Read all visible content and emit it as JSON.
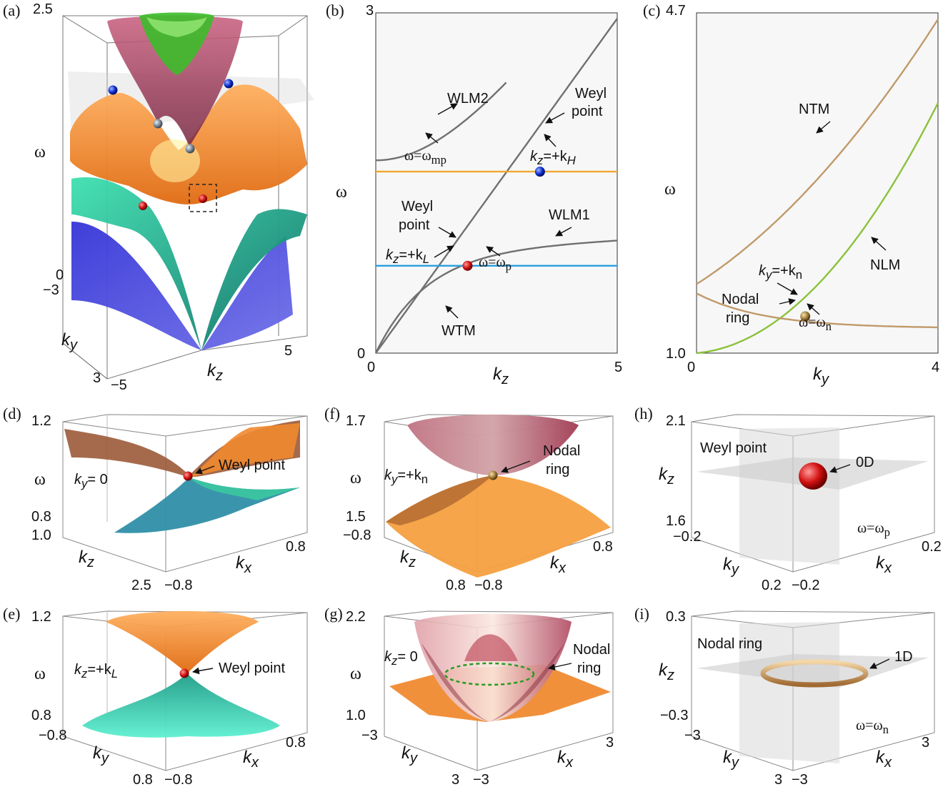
{
  "panels": {
    "a": {
      "label": "(a)",
      "omega_label": "ω",
      "ky_label": "k",
      "ky_sub": "y",
      "kz_label": "k",
      "kz_sub": "z",
      "omega_max": "2.5",
      "omega_min": "0",
      "ky_min": "−3",
      "ky_max": "3",
      "kz_min": "−5",
      "kz_max": "5"
    },
    "b": {
      "label": "(b)",
      "y_max": "3",
      "y_min": "0",
      "x_min": "0",
      "x_max": "5",
      "ylabel": "ω",
      "xlabel_main": "k",
      "xlabel_sub": "z",
      "ann": {
        "wlm2": "WLM2",
        "weyl_point_1a": "Weyl",
        "weyl_point_1b": "point",
        "omega_mp": "ω=ω",
        "omega_mp_sub": "mp",
        "kz_kh": "k",
        "kz_kh_mid": "z",
        "kz_kh_eq": "=+k",
        "kz_kh_sub": "H",
        "weyl_point_2a": "Weyl",
        "weyl_point_2b": "point",
        "wlm1": "WLM1",
        "kz_kl": "k",
        "kz_kl_mid": "z",
        "kz_kl_eq": "=+k",
        "kz_kl_sub": "L",
        "omega_p": "ω=ω",
        "omega_p_sub": "p",
        "wtm": "WTM"
      }
    },
    "c": {
      "label": "(c)",
      "y_max": "4.7",
      "y_min": "1.0",
      "x_min": "0",
      "x_max": "4",
      "ylabel": "ω",
      "xlabel_main": "k",
      "xlabel_sub": "y",
      "ann": {
        "ntm": "NTM",
        "nlm": "NLM",
        "ky_kn": "k",
        "ky_kn_mid": "y",
        "ky_kn_eq": "=+k",
        "ky_kn_sub": "n",
        "nodal_a": "Nodal",
        "nodal_b": "ring",
        "omega_n": "ω=ω",
        "omega_n_sub": "n"
      }
    },
    "d": {
      "label": "(d)",
      "z_max": "1.2",
      "z_min": "0.8",
      "kz_a": "1.0",
      "kz_b": "2.5",
      "kx_a": "−0.8",
      "kx_b": "0.8",
      "zlabel": "ω",
      "ann_ky": "k",
      "ann_ky_sub": "y",
      "ann_ky_eq": "= 0",
      "weyl": "Weyl point"
    },
    "e": {
      "label": "(e)",
      "z_max": "1.2",
      "z_min": "0.8",
      "ky_a": "−0.8",
      "ky_b": "0.8",
      "kx_a": "−0.8",
      "kx_b": "0.8",
      "zlabel": "ω",
      "ann_kz": "k",
      "ann_kz_sub": "z",
      "ann_kz_eq": "=+k",
      "ann_kz_sub2": "L",
      "weyl": "Weyl point"
    },
    "f": {
      "label": "(f)",
      "z_max": "1.7",
      "z_min": "1.5",
      "kz_a": "−0.8",
      "kz_b": "0.8",
      "kx_a": "−0.8",
      "kx_b": "0.8",
      "zlabel": "ω",
      "ann_ky": "k",
      "ann_ky_sub": "y",
      "ann_ky_eq": "=+k",
      "ann_ky_sub2": "n",
      "nodal_a": "Nodal",
      "nodal_b": "ring"
    },
    "g": {
      "label": "(g)",
      "z_max": "2.2",
      "z_min": "1.0",
      "ky_a": "−3",
      "ky_b": "3",
      "kx_a": "−3",
      "kx_b": "3",
      "zlabel": "ω",
      "ann_kz": "k",
      "ann_kz_sub": "z",
      "ann_kz_eq": "= 0",
      "nodal_a": "Nodal",
      "nodal_b": "ring"
    },
    "h": {
      "label": "(h)",
      "z_max": "2.1",
      "z_min": "1.6",
      "ky_a": "−0.2",
      "ky_b": "0.2",
      "kx_a": "−0.2",
      "kx_b": "0.2",
      "zlabel": "k",
      "zlabel_sub": "z",
      "weyl": "Weyl point",
      "dim": "0D",
      "omega": "ω=ω",
      "omega_sub": "p"
    },
    "i": {
      "label": "(i)",
      "z_max": "0.3",
      "z_min": "−0.3",
      "ky_a": "−3",
      "ky_b": "3",
      "kx_a": "−3",
      "kx_b": "3",
      "zlabel": "k",
      "zlabel_sub": "z",
      "nodal": "Nodal  ring",
      "dim": "1D",
      "omega": "ω=ω",
      "omega_sub": "n"
    }
  },
  "chart_data": [
    {
      "type": "line",
      "panel": "b",
      "xlabel": "kz",
      "ylabel": "ω",
      "xlim": [
        0,
        5
      ],
      "ylim": [
        0,
        3
      ],
      "series": [
        {
          "name": "light line",
          "x": [
            0,
            5
          ],
          "y": [
            0,
            2.95
          ]
        },
        {
          "name": "WLM2",
          "x": [
            0,
            2.7
          ],
          "y": [
            1.7,
            2.95
          ]
        },
        {
          "name": "WTM",
          "x": [
            0,
            5
          ],
          "y": [
            0,
            0.88
          ]
        },
        {
          "name": "ω=ωmp",
          "x": [
            0,
            5
          ],
          "y": [
            1.6,
            1.6
          ]
        },
        {
          "name": "ω=ωp",
          "x": [
            0,
            5
          ],
          "y": [
            0.77,
            0.77
          ]
        }
      ],
      "points": [
        {
          "name": "Weyl point (kH)",
          "x": 3.4,
          "y": 1.6
        },
        {
          "name": "Weyl point (kL)",
          "x": 1.9,
          "y": 0.77
        }
      ]
    },
    {
      "type": "line",
      "panel": "c",
      "xlabel": "ky",
      "ylabel": "ω",
      "xlim": [
        0,
        4
      ],
      "ylim": [
        1.0,
        4.7
      ],
      "series": [
        {
          "name": "NTM",
          "x": [
            0,
            4
          ],
          "y": [
            1.75,
            4.65
          ]
        },
        {
          "name": "NLM",
          "x": [
            0,
            4
          ],
          "y": [
            1.0,
            3.75
          ]
        },
        {
          "name": "lower branch",
          "x": [
            0,
            4
          ],
          "y": [
            1.65,
            1.27
          ]
        }
      ],
      "points": [
        {
          "name": "Nodal ring",
          "x": 1.8,
          "y": 1.4
        }
      ]
    }
  ]
}
